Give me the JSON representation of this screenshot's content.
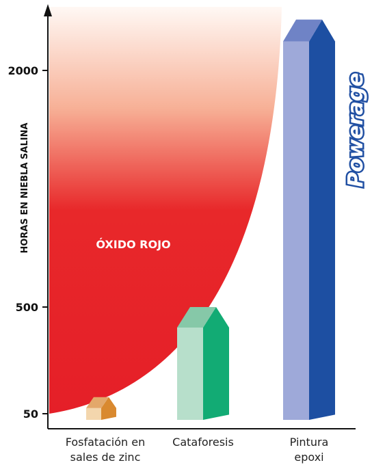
{
  "chart_data": {
    "type": "bar",
    "y_label": "HORAS EN NIEBLA SALINA",
    "annotation": "ÓXIDO ROJO",
    "logo": "Powerage",
    "categories": [
      "Fosfatación en sales de zinc",
      "Cataforesis",
      "Pintura epoxi"
    ],
    "values": [
      120,
      500,
      2400
    ],
    "colors": [
      {
        "front": "#f3d6ad",
        "roof": "#e3a86a",
        "side": "#d9892f"
      },
      {
        "front": "#b7dfcb",
        "roof": "#86c8a8",
        "side": "#12ab74"
      },
      {
        "front": "#9ea9d9",
        "roof": "#6f83c6",
        "side": "#1d4fa2"
      }
    ],
    "ylim": [
      0,
      2500
    ],
    "yticks": [
      50,
      500,
      2000
    ]
  }
}
